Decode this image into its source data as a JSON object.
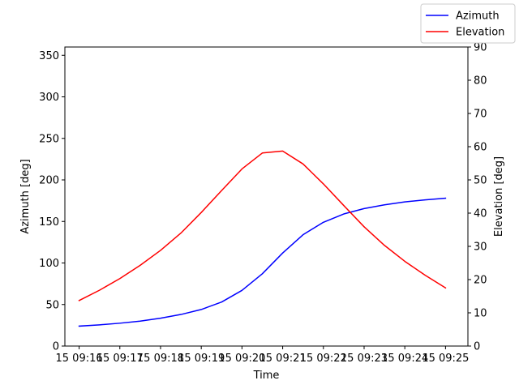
{
  "chart_data": {
    "type": "line",
    "xlabel": "Time",
    "ylabel_left": "Azimuth [deg]",
    "ylabel_right": "Elevation [deg]",
    "x_tick_labels": [
      "15 09:16",
      "15 09:17",
      "15 09:18",
      "15 09:19",
      "15 09:20",
      "15 09:21",
      "15 09:22",
      "15 09:23",
      "15 09:24",
      "15 09:25"
    ],
    "x_tick_minutes": [
      16,
      17,
      18,
      19,
      20,
      21,
      22,
      23,
      24,
      25
    ],
    "xlim": [
      15.65,
      25.55
    ],
    "ylim_left": [
      0,
      360
    ],
    "ylim_right": [
      0,
      90
    ],
    "y_ticks_left": [
      0,
      50,
      100,
      150,
      200,
      250,
      300,
      350
    ],
    "y_ticks_right": [
      0,
      10,
      20,
      30,
      40,
      50,
      60,
      70,
      80,
      90
    ],
    "x_minutes": [
      16.0,
      16.5,
      17.0,
      17.5,
      18.0,
      18.5,
      19.0,
      19.5,
      20.0,
      20.5,
      21.0,
      21.5,
      22.0,
      22.5,
      23.0,
      23.5,
      24.0,
      24.5,
      25.0
    ],
    "series": [
      {
        "name": "Azimuth",
        "axis": "left",
        "color": "#0000ff",
        "values": [
          24,
          25.5,
          27.5,
          30,
          33.5,
          38,
          44,
          53,
          67,
          87,
          112,
          134,
          149,
          159,
          165.5,
          170,
          173.5,
          176,
          178
        ]
      },
      {
        "name": "Elevation",
        "axis": "right",
        "color": "#ff0000",
        "values": [
          13.7,
          16.8,
          20.3,
          24.3,
          28.8,
          34,
          40.2,
          46.8,
          53.3,
          58.1,
          58.7,
          54.8,
          48.8,
          42.3,
          35.9,
          30.3,
          25.5,
          21.3,
          17.5
        ]
      }
    ],
    "legend": {
      "placement": "top-right",
      "entries": [
        {
          "label": "Azimuth",
          "color": "#0000ff"
        },
        {
          "label": "Elevation",
          "color": "#ff0000"
        }
      ]
    }
  }
}
